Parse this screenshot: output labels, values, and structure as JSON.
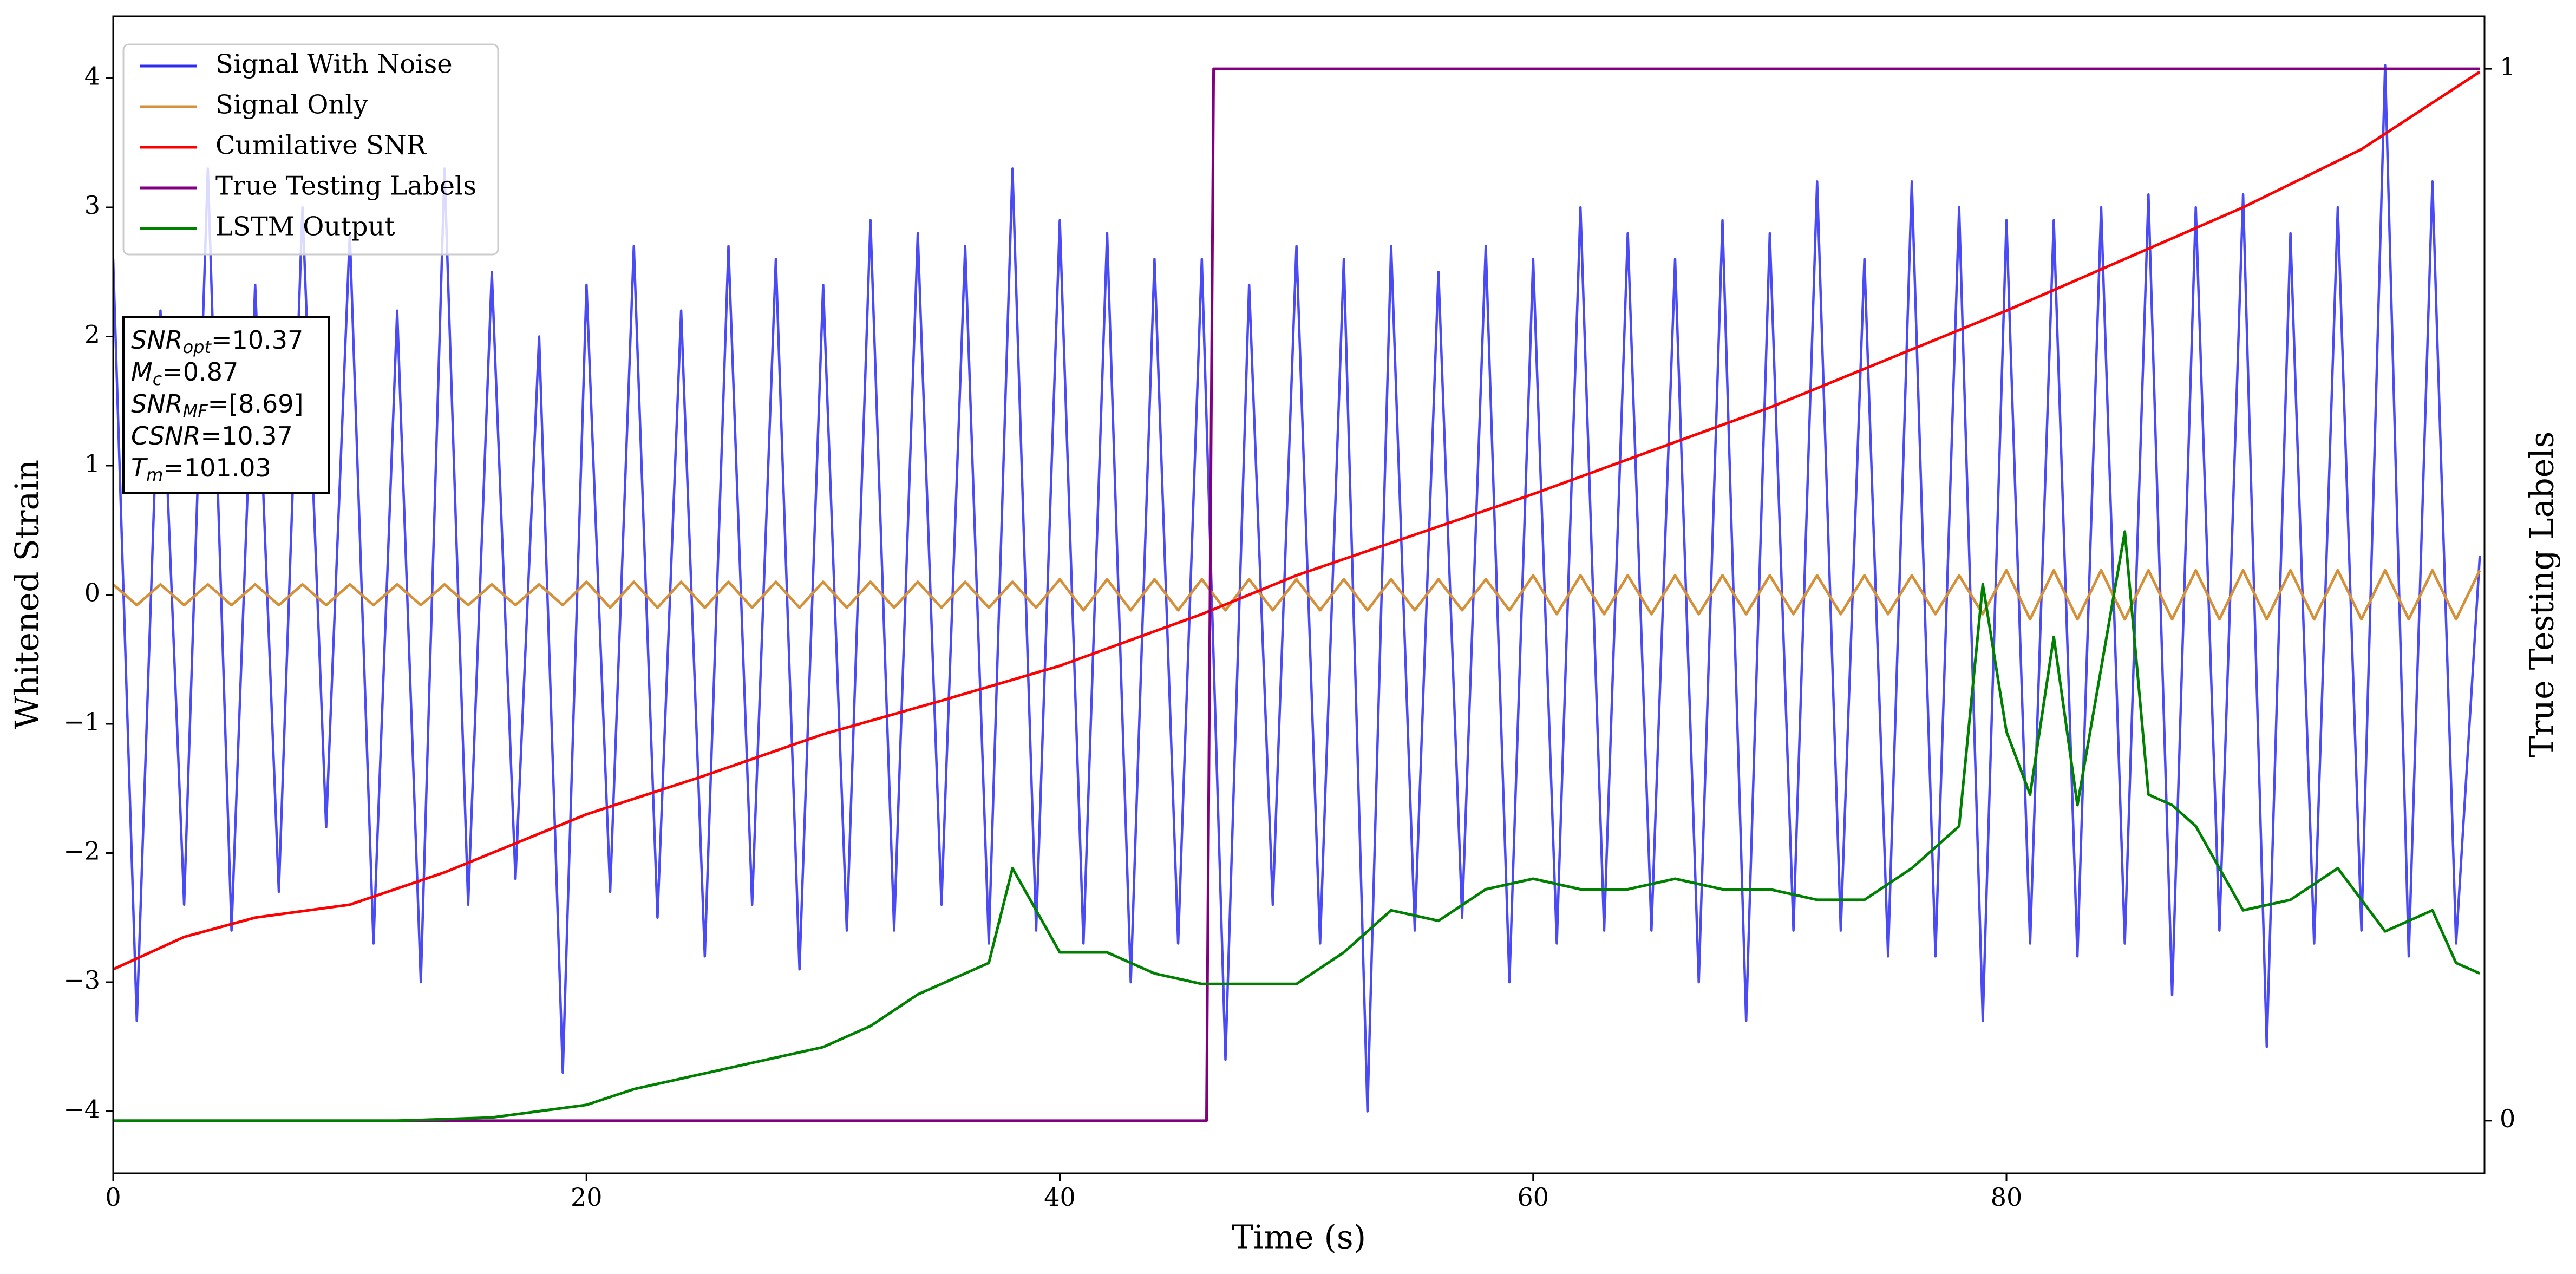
{
  "chart_data": {
    "type": "line",
    "xlabel": "Time (s)",
    "ylabel": "Whitened Strain",
    "y2label": "True Testing Labels",
    "xlim": [
      0,
      100.2
    ],
    "ylim": [
      -4.48,
      4.48
    ],
    "y2lim": [
      -0.05,
      1.05
    ],
    "xticks": [
      0,
      20,
      40,
      60,
      80
    ],
    "yticks": [
      {
        "value": -4,
        "label": "−4"
      },
      {
        "value": -3,
        "label": "−3"
      },
      {
        "value": -2,
        "label": "−2"
      },
      {
        "value": -1,
        "label": "−1"
      },
      0,
      1,
      2,
      3,
      4
    ],
    "y2ticks": [
      0,
      1
    ],
    "legend": "upper left",
    "x": [
      0,
      1,
      2,
      3,
      4,
      5,
      6,
      7,
      8,
      9,
      10,
      11,
      12,
      13,
      14,
      15,
      16,
      17,
      18,
      19,
      20,
      21,
      22,
      23,
      24,
      25,
      26,
      27,
      28,
      29,
      30,
      31,
      32,
      33,
      34,
      35,
      36,
      37,
      38,
      39,
      40,
      41,
      42,
      43,
      44,
      45,
      46,
      47,
      48,
      49,
      50,
      51,
      52,
      53,
      54,
      55,
      56,
      57,
      58,
      59,
      60,
      61,
      62,
      63,
      64,
      65,
      66,
      67,
      68,
      69,
      70,
      71,
      72,
      73,
      74,
      75,
      76,
      77,
      78,
      79,
      80,
      81,
      82,
      83,
      84,
      85,
      86,
      87,
      88,
      89,
      90,
      91,
      92,
      93,
      94,
      95,
      96,
      97,
      98,
      99,
      100
    ],
    "series": [
      {
        "name": "Signal With Noise",
        "color": "#2b2bf5",
        "values": [
          2.6,
          -3.3,
          2.2,
          -2.4,
          3.3,
          -2.6,
          2.4,
          -2.3,
          3.0,
          -1.8,
          2.8,
          -2.7,
          2.2,
          -3.0,
          3.3,
          -2.4,
          2.5,
          -2.2,
          2.0,
          -3.7,
          2.4,
          -2.3,
          2.7,
          -2.5,
          2.2,
          -2.8,
          2.7,
          -2.4,
          2.6,
          -2.9,
          2.4,
          -2.6,
          2.9,
          -2.6,
          2.8,
          -2.4,
          2.7,
          -2.7,
          3.3,
          -2.6,
          2.9,
          -2.7,
          2.8,
          -3.0,
          2.6,
          -2.7,
          2.6,
          -3.6,
          2.4,
          -2.4,
          2.7,
          -2.7,
          2.6,
          -4.0,
          2.7,
          -2.6,
          2.5,
          -2.5,
          2.7,
          -3.0,
          2.6,
          -2.7,
          3.0,
          -2.6,
          2.8,
          -2.6,
          2.6,
          -3.0,
          2.9,
          -3.3,
          2.8,
          -2.6,
          3.2,
          -2.6,
          2.6,
          -2.8,
          3.2,
          -2.8,
          3.0,
          -3.3,
          2.9,
          -2.7,
          2.9,
          -2.8,
          3.0,
          -2.7,
          3.1,
          -3.1,
          3.0,
          -2.6,
          3.1,
          -3.5,
          2.8,
          -2.7,
          3.0,
          -2.6,
          4.1,
          -2.8,
          3.2,
          -2.7,
          0.3
        ]
      },
      {
        "name": "Signal Only",
        "color": "#d4913a",
        "values": [
          0.08,
          -0.08,
          0.08,
          -0.08,
          0.08,
          -0.08,
          0.08,
          -0.08,
          0.08,
          -0.08,
          0.08,
          -0.08,
          0.08,
          -0.08,
          0.08,
          -0.08,
          0.08,
          -0.08,
          0.08,
          -0.08,
          0.1,
          -0.1,
          0.1,
          -0.1,
          0.1,
          -0.1,
          0.1,
          -0.1,
          0.1,
          -0.1,
          0.1,
          -0.1,
          0.1,
          -0.1,
          0.1,
          -0.1,
          0.1,
          -0.1,
          0.1,
          -0.1,
          0.12,
          -0.12,
          0.12,
          -0.12,
          0.12,
          -0.12,
          0.12,
          -0.12,
          0.12,
          -0.12,
          0.12,
          -0.12,
          0.12,
          -0.12,
          0.12,
          -0.12,
          0.12,
          -0.12,
          0.12,
          -0.12,
          0.15,
          -0.15,
          0.15,
          -0.15,
          0.15,
          -0.15,
          0.15,
          -0.15,
          0.15,
          -0.15,
          0.15,
          -0.15,
          0.15,
          -0.15,
          0.15,
          -0.15,
          0.15,
          -0.15,
          0.15,
          -0.15,
          0.19,
          -0.19,
          0.19,
          -0.19,
          0.19,
          -0.19,
          0.19,
          -0.19,
          0.19,
          -0.19,
          0.19,
          -0.19,
          0.19,
          -0.19,
          0.19,
          -0.19,
          0.19,
          -0.19,
          0.19,
          -0.19,
          0.19
        ]
      },
      {
        "name": "Cumilative SNR",
        "color": "#ff0000",
        "x": [
          0,
          3,
          6,
          10,
          14,
          20,
          25,
          30,
          35,
          40,
          46,
          50,
          60,
          70,
          80,
          90,
          95,
          100
        ],
        "values": [
          -2.9,
          -2.65,
          -2.5,
          -2.4,
          -2.15,
          -1.7,
          -1.4,
          -1.08,
          -0.82,
          -0.55,
          -0.15,
          0.15,
          0.78,
          1.45,
          2.2,
          3.0,
          3.45,
          4.05
        ]
      },
      {
        "name": "True Testing Labels",
        "color": "#800080",
        "axis": "y2",
        "x": [
          0,
          46.2,
          46.5,
          100
        ],
        "values": [
          0,
          0,
          1,
          1
        ]
      },
      {
        "name": "LSTM Output",
        "color": "#008000",
        "axis": "y2",
        "x": [
          0,
          12,
          16,
          20,
          22,
          25,
          28,
          30,
          32,
          34,
          36,
          37,
          38,
          39,
          40,
          42,
          44,
          46,
          48,
          50,
          52,
          54,
          56,
          58,
          60,
          62,
          64,
          66,
          68,
          70,
          72,
          74,
          76,
          78,
          79,
          80,
          81,
          82,
          83,
          85,
          86,
          87,
          88,
          90,
          92,
          94,
          96,
          98,
          99,
          100
        ],
        "values": [
          0,
          0,
          0.003,
          0.015,
          0.03,
          0.045,
          0.06,
          0.07,
          0.09,
          0.12,
          0.14,
          0.15,
          0.24,
          0.2,
          0.16,
          0.16,
          0.14,
          0.13,
          0.13,
          0.13,
          0.16,
          0.2,
          0.19,
          0.22,
          0.23,
          0.22,
          0.22,
          0.23,
          0.22,
          0.22,
          0.21,
          0.21,
          0.24,
          0.28,
          0.51,
          0.37,
          0.31,
          0.46,
          0.3,
          0.56,
          0.31,
          0.3,
          0.28,
          0.2,
          0.21,
          0.24,
          0.18,
          0.2,
          0.15,
          0.14
        ]
      }
    ],
    "annotation": [
      {
        "name": "SNR",
        "sub": "opt",
        "text": "=10.37"
      },
      {
        "name": "M",
        "sub": "c",
        "text": "=0.87"
      },
      {
        "name": "SNR",
        "sub": "MF",
        "text": "=[8.69]"
      },
      {
        "name": "CSNR",
        "text": "=10.37"
      },
      {
        "name": "T",
        "sub": "m",
        "text": "=101.03"
      }
    ]
  }
}
